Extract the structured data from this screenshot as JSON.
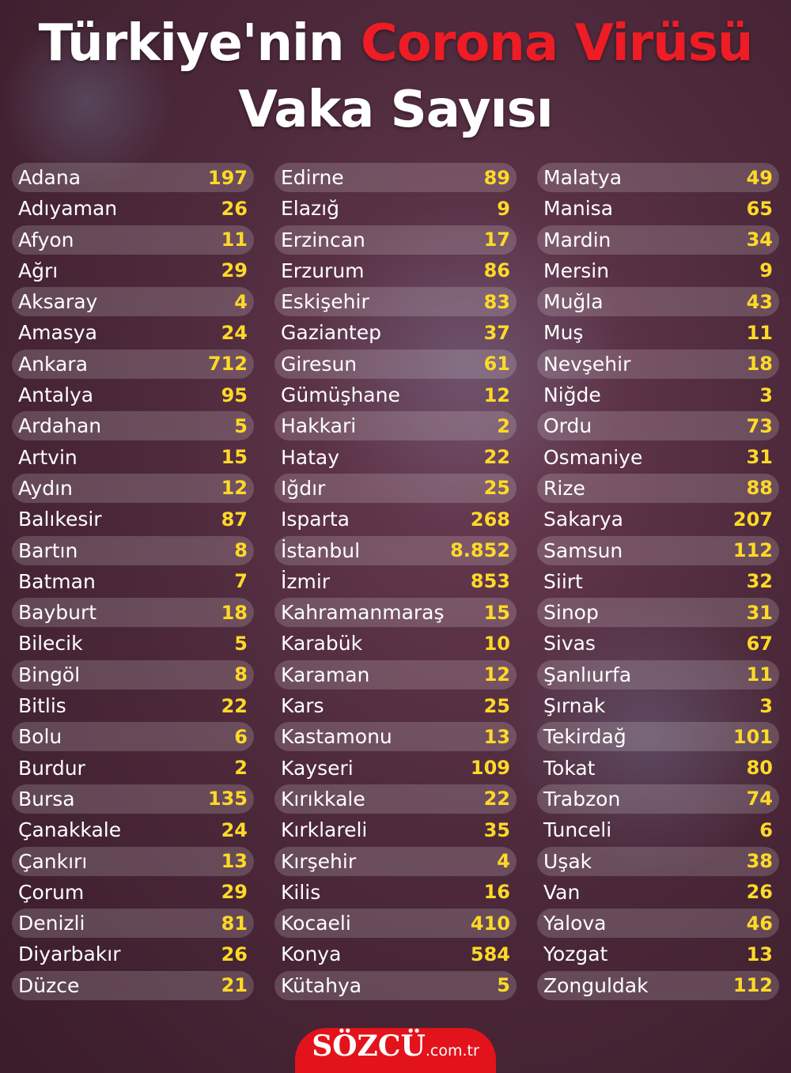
{
  "title": {
    "line1_white": "Türkiye'nin",
    "line1_red": "Corona Virüsü",
    "line2": "Vaka Sayısı"
  },
  "colors": {
    "accent_red": "#ee1c24",
    "value_yellow": "#ffd928"
  },
  "columns": [
    [
      [
        "Adana",
        "197"
      ],
      [
        "Adıyaman",
        "26"
      ],
      [
        "Afyon",
        "11"
      ],
      [
        "Ağrı",
        "29"
      ],
      [
        "Aksaray",
        "4"
      ],
      [
        "Amasya",
        "24"
      ],
      [
        "Ankara",
        "712"
      ],
      [
        "Antalya",
        "95"
      ],
      [
        "Ardahan",
        "5"
      ],
      [
        "Artvin",
        "15"
      ],
      [
        "Aydın",
        "12"
      ],
      [
        "Balıkesir",
        "87"
      ],
      [
        "Bartın",
        "8"
      ],
      [
        "Batman",
        "7"
      ],
      [
        "Bayburt",
        "18"
      ],
      [
        "Bilecik",
        "5"
      ],
      [
        "Bingöl",
        "8"
      ],
      [
        "Bitlis",
        "22"
      ],
      [
        "Bolu",
        "6"
      ],
      [
        "Burdur",
        "2"
      ],
      [
        "Bursa",
        "135"
      ],
      [
        "Çanakkale",
        "24"
      ],
      [
        "Çankırı",
        "13"
      ],
      [
        "Çorum",
        "29"
      ],
      [
        "Denizli",
        "81"
      ],
      [
        "Diyarbakır",
        "26"
      ],
      [
        "Düzce",
        "21"
      ]
    ],
    [
      [
        "Edirne",
        "89"
      ],
      [
        "Elazığ",
        "9"
      ],
      [
        "Erzincan",
        "17"
      ],
      [
        "Erzurum",
        "86"
      ],
      [
        "Eskişehir",
        "83"
      ],
      [
        "Gaziantep",
        "37"
      ],
      [
        "Giresun",
        "61"
      ],
      [
        "Gümüşhane",
        "12"
      ],
      [
        "Hakkari",
        "2"
      ],
      [
        "Hatay",
        "22"
      ],
      [
        "Iğdır",
        "25"
      ],
      [
        "Isparta",
        "268"
      ],
      [
        "İstanbul",
        "8.852"
      ],
      [
        "İzmir",
        "853"
      ],
      [
        "Kahramanmaraş",
        "15"
      ],
      [
        "Karabük",
        "10"
      ],
      [
        "Karaman",
        "12"
      ],
      [
        "Kars",
        "25"
      ],
      [
        "Kastamonu",
        "13"
      ],
      [
        "Kayseri",
        "109"
      ],
      [
        "Kırıkkale",
        "22"
      ],
      [
        "Kırklareli",
        "35"
      ],
      [
        "Kırşehir",
        "4"
      ],
      [
        "Kilis",
        "16"
      ],
      [
        "Kocaeli",
        "410"
      ],
      [
        "Konya",
        "584"
      ],
      [
        "Kütahya",
        "5"
      ]
    ],
    [
      [
        "Malatya",
        "49"
      ],
      [
        "Manisa",
        "65"
      ],
      [
        "Mardin",
        "34"
      ],
      [
        "Mersin",
        "9"
      ],
      [
        "Muğla",
        "43"
      ],
      [
        "Muş",
        "11"
      ],
      [
        "Nevşehir",
        "18"
      ],
      [
        "Niğde",
        "3"
      ],
      [
        "Ordu",
        "73"
      ],
      [
        "Osmaniye",
        "31"
      ],
      [
        "Rize",
        "88"
      ],
      [
        "Sakarya",
        "207"
      ],
      [
        "Samsun",
        "112"
      ],
      [
        "Siirt",
        "32"
      ],
      [
        "Sinop",
        "31"
      ],
      [
        "Sivas",
        "67"
      ],
      [
        "Şanlıurfa",
        "11"
      ],
      [
        "Şırnak",
        "3"
      ],
      [
        "Tekirdağ",
        "101"
      ],
      [
        "Tokat",
        "80"
      ],
      [
        "Trabzon",
        "74"
      ],
      [
        "Tunceli",
        "6"
      ],
      [
        "Uşak",
        "38"
      ],
      [
        "Van",
        "26"
      ],
      [
        "Yalova",
        "46"
      ],
      [
        "Yozgat",
        "13"
      ],
      [
        "Zonguldak",
        "112"
      ]
    ]
  ],
  "logo": {
    "brand": "SÖZCÜ",
    "domain": ".com.tr"
  }
}
